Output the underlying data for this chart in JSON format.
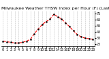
{
  "title": "Milwaukee Weather THSW Index per Hour (F) (Last 24 Hours)",
  "x": [
    0,
    1,
    2,
    3,
    4,
    5,
    6,
    7,
    8,
    9,
    10,
    11,
    12,
    13,
    14,
    15,
    16,
    17,
    18,
    19,
    20,
    21,
    22,
    23
  ],
  "y": [
    30,
    29,
    28,
    27,
    27,
    28,
    30,
    33,
    42,
    50,
    57,
    62,
    66,
    74,
    70,
    66,
    60,
    54,
    47,
    41,
    37,
    35,
    34,
    33
  ],
  "line_color": "#ff0000",
  "marker_color": "#000000",
  "marker_size": 1.5,
  "line_style": "--",
  "line_width": 0.8,
  "background_color": "#ffffff",
  "grid_color": "#888888",
  "ylim": [
    22,
    80
  ],
  "xlim": [
    -0.5,
    23.5
  ],
  "ytick_values": [
    25,
    35,
    45,
    55,
    65,
    75
  ],
  "ytick_labels": [
    "25",
    "35",
    "45",
    "55",
    "65",
    "75"
  ],
  "title_fontsize": 4.5,
  "tick_fontsize": 3.5
}
